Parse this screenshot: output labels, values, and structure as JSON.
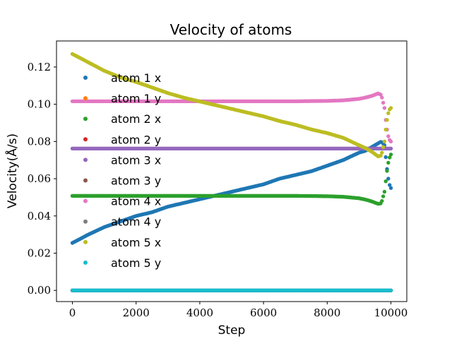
{
  "chart_data": {
    "type": "scatter",
    "title": "Velocity of atoms",
    "xlabel": "Step",
    "ylabel": "Velocity(Å/s)",
    "xlim": [
      -500,
      10500
    ],
    "ylim": [
      -0.006,
      0.134
    ],
    "x_ticks": [
      0,
      2000,
      4000,
      6000,
      8000,
      10000
    ],
    "x_tick_labels": [
      "0",
      "2000",
      "4000",
      "6000",
      "8000",
      "10000"
    ],
    "y_ticks": [
      0.0,
      0.02,
      0.04,
      0.06,
      0.08,
      0.1,
      0.12
    ],
    "y_tick_labels": [
      "0.00",
      "0.02",
      "0.04",
      "0.06",
      "0.08",
      "0.10",
      "0.12"
    ],
    "grid": false,
    "legend_position": "upper-left",
    "x": [
      0,
      500,
      1000,
      1500,
      2000,
      2500,
      3000,
      3500,
      4000,
      4500,
      5000,
      5500,
      6000,
      6500,
      7000,
      7500,
      8000,
      8500,
      9000,
      9200,
      9400,
      9600,
      9700,
      9800,
      9850,
      9900,
      9950,
      10000
    ],
    "series": [
      {
        "name": "atom 1 x",
        "color": "#1f77b4",
        "values": [
          0.0255,
          0.03,
          0.034,
          0.037,
          0.04,
          0.042,
          0.045,
          0.047,
          0.049,
          0.051,
          0.053,
          0.055,
          0.057,
          0.06,
          0.062,
          0.064,
          0.067,
          0.07,
          0.074,
          0.075,
          0.077,
          0.079,
          0.08,
          0.078,
          0.07,
          0.062,
          0.057,
          0.055
        ]
      },
      {
        "name": "atom 1 y",
        "color": "#ff7f0e",
        "values": [
          0,
          0,
          0,
          0,
          0,
          0,
          0,
          0,
          0,
          0,
          0,
          0,
          0,
          0,
          0,
          0,
          0,
          0,
          0,
          0,
          0,
          0,
          0,
          0,
          0,
          0,
          0,
          0
        ]
      },
      {
        "name": "atom 2 x",
        "color": "#2ca02c",
        "values": [
          0.0508,
          0.0508,
          0.0508,
          0.0508,
          0.0508,
          0.0508,
          0.0508,
          0.0508,
          0.0508,
          0.0508,
          0.0508,
          0.0508,
          0.0508,
          0.0508,
          0.0508,
          0.0507,
          0.0506,
          0.0503,
          0.0495,
          0.0488,
          0.0478,
          0.0465,
          0.0468,
          0.053,
          0.06,
          0.067,
          0.071,
          0.073
        ]
      },
      {
        "name": "atom 2 y",
        "color": "#d62728",
        "values": [
          0,
          0,
          0,
          0,
          0,
          0,
          0,
          0,
          0,
          0,
          0,
          0,
          0,
          0,
          0,
          0,
          0,
          0,
          0,
          0,
          0,
          0,
          0,
          0,
          0,
          0,
          0,
          0
        ]
      },
      {
        "name": "atom 3 x",
        "color": "#9467bd",
        "values": [
          0.0762,
          0.0762,
          0.0762,
          0.0762,
          0.0762,
          0.0762,
          0.0762,
          0.0762,
          0.0762,
          0.0762,
          0.0762,
          0.0762,
          0.0762,
          0.0762,
          0.0762,
          0.0762,
          0.0762,
          0.0762,
          0.0762,
          0.0762,
          0.0762,
          0.0762,
          0.0762,
          0.0762,
          0.0762,
          0.0762,
          0.0762,
          0.0762
        ]
      },
      {
        "name": "atom 3 y",
        "color": "#8c564b",
        "values": [
          0,
          0,
          0,
          0,
          0,
          0,
          0,
          0,
          0,
          0,
          0,
          0,
          0,
          0,
          0,
          0,
          0,
          0,
          0,
          0,
          0,
          0,
          0,
          0,
          0,
          0,
          0,
          0
        ]
      },
      {
        "name": "atom 4 x",
        "color": "#e377c2",
        "values": [
          0.1016,
          0.1016,
          0.1016,
          0.1016,
          0.1016,
          0.1016,
          0.1016,
          0.1016,
          0.1016,
          0.1016,
          0.1016,
          0.1016,
          0.1016,
          0.1016,
          0.1016,
          0.1017,
          0.1018,
          0.1021,
          0.1029,
          0.1036,
          0.1045,
          0.1058,
          0.105,
          0.098,
          0.09,
          0.084,
          0.081,
          0.08
        ]
      },
      {
        "name": "atom 4 y",
        "color": "#7f7f7f",
        "values": [
          0,
          0,
          0,
          0,
          0,
          0,
          0,
          0,
          0,
          0,
          0,
          0,
          0,
          0,
          0,
          0,
          0,
          0,
          0,
          0,
          0,
          0,
          0,
          0,
          0,
          0,
          0,
          0
        ]
      },
      {
        "name": "atom 5 x",
        "color": "#bcbd22",
        "values": [
          0.127,
          0.1225,
          0.118,
          0.1145,
          0.112,
          0.109,
          0.106,
          0.1035,
          0.1015,
          0.0995,
          0.0975,
          0.0955,
          0.0935,
          0.091,
          0.089,
          0.0865,
          0.0845,
          0.082,
          0.078,
          0.0765,
          0.0745,
          0.072,
          0.0725,
          0.08,
          0.088,
          0.094,
          0.097,
          0.098
        ]
      },
      {
        "name": "atom 5 y",
        "color": "#17becf",
        "values": [
          0,
          0,
          0,
          0,
          0,
          0,
          0,
          0,
          0,
          0,
          0,
          0,
          0,
          0,
          0,
          0,
          0,
          0,
          0,
          0,
          0,
          0,
          0,
          0,
          0,
          0,
          0,
          0
        ]
      }
    ]
  }
}
